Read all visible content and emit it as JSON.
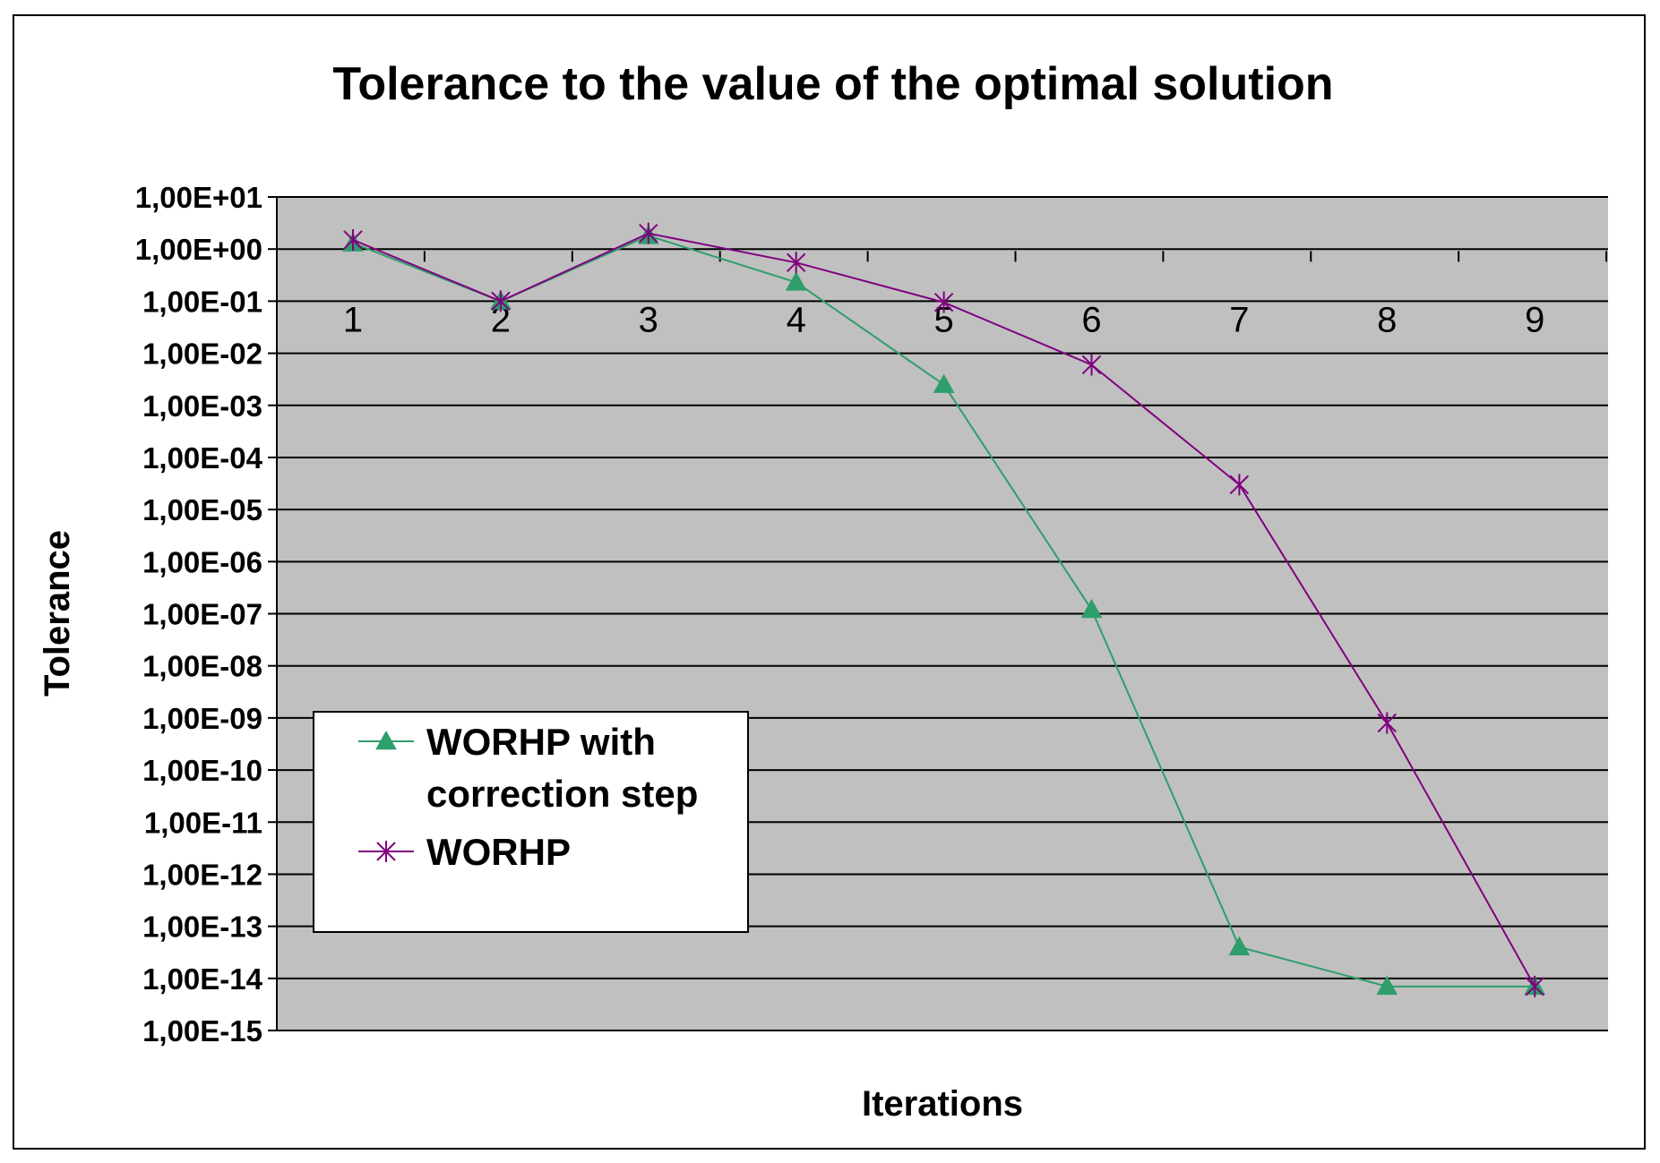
{
  "chart_data": {
    "type": "line",
    "title": "Tolerance to the value of the optimal solution",
    "xlabel": "Iterations",
    "ylabel": "Tolerance",
    "y_scale": "log",
    "ylim": [
      1e-15,
      10
    ],
    "y_tick_labels": [
      "1,00E+01",
      "1,00E+00",
      "1,00E-01",
      "1,00E-02",
      "1,00E-03",
      "1,00E-04",
      "1,00E-05",
      "1,00E-06",
      "1,00E-07",
      "1,00E-08",
      "1,00E-09",
      "1,00E-10",
      "1,00E-11",
      "1,00E-12",
      "1,00E-13",
      "1,00E-14",
      "1,00E-15"
    ],
    "categories": [
      "1",
      "2",
      "3",
      "4",
      "5",
      "6",
      "7",
      "8",
      "9"
    ],
    "x_axis_crosses_at": 0.1,
    "grid": true,
    "plot_background": "#c0c0c0",
    "legend_position": "lower-left",
    "series": [
      {
        "name": "WORHP with correction step",
        "color": "#2e9e6a",
        "marker": "triangle",
        "values": [
          1.3,
          0.1,
          1.8,
          0.23,
          0.0025,
          1.2e-07,
          4e-14,
          7e-15,
          7e-15
        ]
      },
      {
        "name": "WORHP",
        "color": "#800080",
        "marker": "star",
        "values": [
          1.5,
          0.1,
          2.0,
          0.55,
          0.095,
          0.006,
          3e-05,
          8e-10,
          7e-15
        ]
      }
    ]
  }
}
